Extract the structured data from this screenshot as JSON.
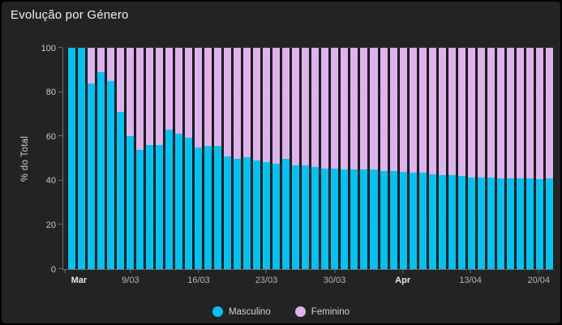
{
  "window": {
    "title": "Evolução por Género"
  },
  "colors": {
    "masculino": "#00c3f1",
    "feminino": "#deb3ec",
    "panel_bg": "#232323",
    "grid": "#2f2f2f",
    "axis": "#6e6e6e",
    "tick_text": "#c9c9c9",
    "title_text": "#f0f0f0"
  },
  "chart_data": {
    "type": "bar",
    "stacked": true,
    "stack_unit": "percent",
    "title": "Evolução por Género",
    "xlabel": "",
    "ylabel": "% do Total",
    "ylim": [
      0,
      100
    ],
    "yticks": [
      0,
      20,
      40,
      60,
      80,
      100
    ],
    "grid": "horizontal-faint",
    "legend_position": "bottom-center",
    "x": [
      "3/03",
      "4/03",
      "5/03",
      "6/03",
      "7/03",
      "8/03",
      "9/03",
      "10/03",
      "11/03",
      "12/03",
      "13/03",
      "14/03",
      "15/03",
      "16/03",
      "17/03",
      "18/03",
      "19/03",
      "20/03",
      "21/03",
      "22/03",
      "23/03",
      "24/03",
      "25/03",
      "26/03",
      "27/03",
      "28/03",
      "29/03",
      "30/03",
      "31/03",
      "1/04",
      "2/04",
      "3/04",
      "4/04",
      "5/04",
      "6/04",
      "7/04",
      "8/04",
      "9/04",
      "10/04",
      "11/04",
      "12/04",
      "13/04",
      "14/04",
      "15/04",
      "16/04",
      "17/04",
      "18/04",
      "19/04",
      "20/04",
      "21/04"
    ],
    "xticks": [
      {
        "label": "Mar",
        "pos": 0.4,
        "label_pos": 3.2,
        "bold": true
      },
      {
        "label": "9/03",
        "pos": 13.7,
        "label_pos": 13.7,
        "bold": false
      },
      {
        "label": "16/03",
        "pos": 27.6,
        "label_pos": 27.6,
        "bold": false
      },
      {
        "label": "23/03",
        "pos": 41.4,
        "label_pos": 41.4,
        "bold": false
      },
      {
        "label": "30/03",
        "pos": 55.3,
        "label_pos": 55.3,
        "bold": false
      },
      {
        "label": "Apr",
        "pos": 69.2,
        "label_pos": 69.2,
        "bold": true
      },
      {
        "label": "13/04",
        "pos": 83.0,
        "label_pos": 83.0,
        "bold": false
      },
      {
        "label": "20/04",
        "pos": 96.9,
        "label_pos": 96.9,
        "bold": false
      }
    ],
    "series": [
      {
        "name": "Masculino",
        "color": "#00c3f1",
        "values": [
          100,
          100,
          84,
          89,
          85,
          71,
          60,
          54,
          56,
          56,
          63,
          61,
          59.5,
          55,
          55.5,
          55.5,
          51,
          50,
          50.5,
          49,
          48.5,
          47.5,
          50,
          47,
          47,
          46,
          45.5,
          45.5,
          45,
          45,
          45,
          45,
          44.5,
          44.5,
          44,
          43.5,
          43.5,
          43,
          42.5,
          42.5,
          42,
          41.5,
          41.5,
          41.5,
          41,
          41,
          41,
          41,
          40.5,
          41
        ]
      },
      {
        "name": "Feminino",
        "color": "#deb3ec",
        "values": [
          0,
          0,
          16,
          11,
          15,
          29,
          40,
          46,
          44,
          44,
          37,
          39,
          40.5,
          45,
          44.5,
          44.5,
          49,
          50,
          49.5,
          51,
          51.5,
          52.5,
          50,
          53,
          53,
          54,
          54.5,
          54.5,
          55,
          55,
          55,
          55,
          55.5,
          55.5,
          56,
          56.5,
          56.5,
          57,
          57.5,
          57.5,
          58,
          58.5,
          58.5,
          58.5,
          59,
          59,
          59,
          59,
          59.5,
          59
        ]
      }
    ]
  },
  "legend": {
    "items": [
      {
        "label": "Masculino"
      },
      {
        "label": "Feminino"
      }
    ]
  }
}
